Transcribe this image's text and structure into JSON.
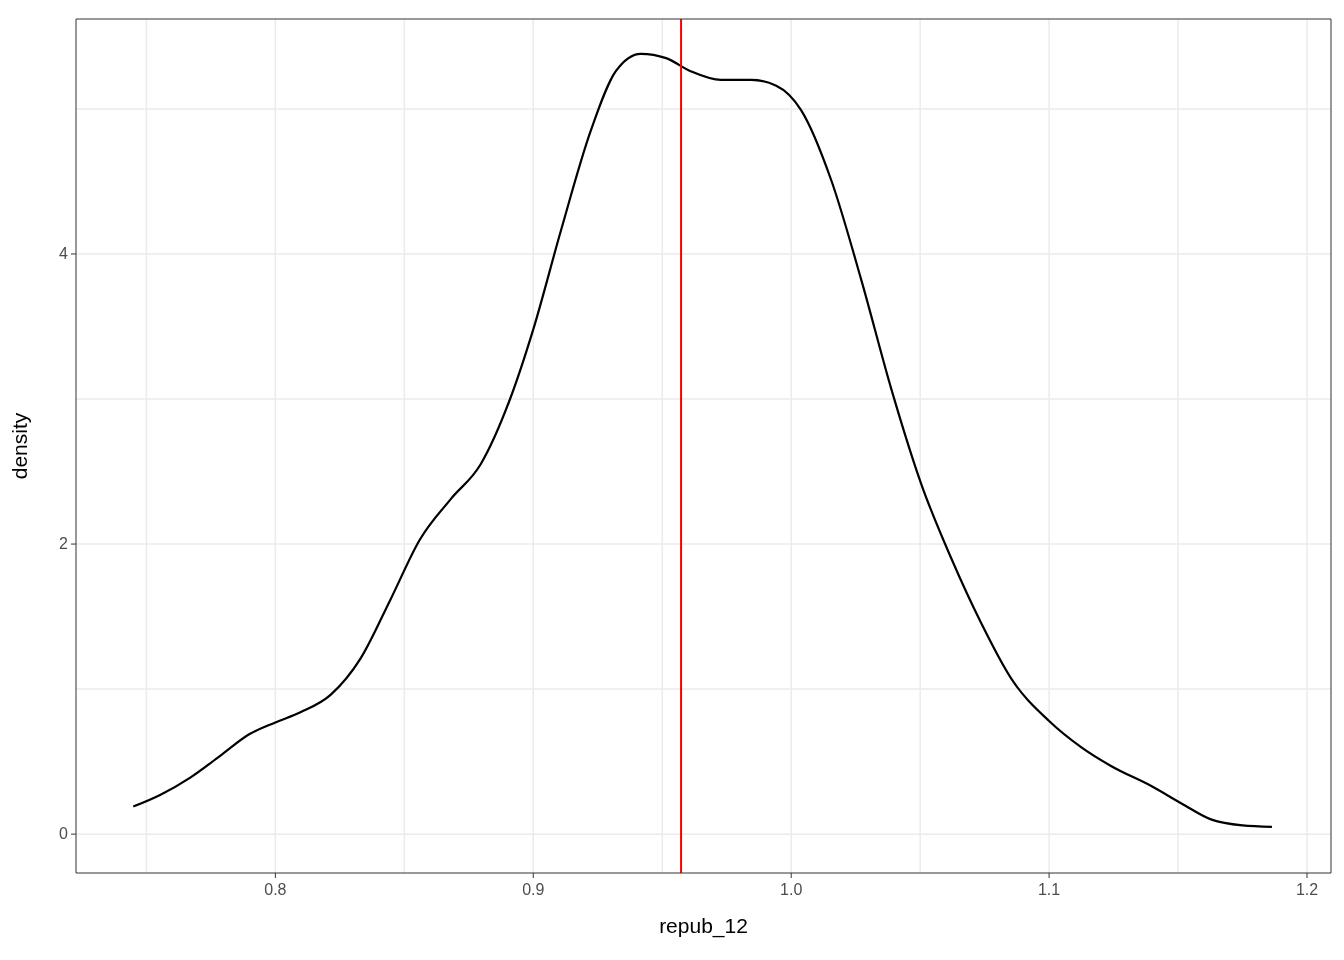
{
  "chart_data": {
    "type": "line",
    "xlabel": "repub_12",
    "ylabel": "density",
    "xlim": [
      0.7227,
      1.2093
    ],
    "ylim": [
      -0.268,
      5.62
    ],
    "xticks": [
      {
        "value": 0.75,
        "label": null
      },
      0.8,
      {
        "value": 0.85,
        "label": null
      },
      0.9,
      {
        "value": 0.95,
        "label": null
      },
      "1.0",
      {
        "value": 1.05,
        "label": null
      },
      1.1,
      {
        "value": 1.15,
        "label": null
      },
      1.2
    ],
    "yticks": [
      0,
      {
        "value": 1,
        "label": null
      },
      2,
      {
        "value": 3,
        "label": null
      },
      4,
      {
        "value": 5,
        "label": null
      }
    ],
    "grid": true,
    "marker": "none",
    "line_style": "solid",
    "ref_lines": [
      {
        "axis": "x",
        "value": 0.9573,
        "label": null,
        "color": "#ff0000"
      }
    ],
    "series": [
      {
        "color": "#000000",
        "x": [
          0.7449,
          0.7553,
          0.767,
          0.7786,
          0.79,
          0.8,
          0.8097,
          0.8214,
          0.833,
          0.8447,
          0.856,
          0.868,
          0.8796,
          0.891,
          0.9,
          0.9107,
          0.9223,
          0.932,
          0.9417,
          0.9515,
          0.961,
          0.9728,
          0.9845,
          0.9942,
          1.0039,
          1.0155,
          1.0272,
          1.0388,
          1.0505,
          1.0621,
          1.0738,
          1.0854,
          1.1,
          1.1124,
          1.124,
          1.1398,
          1.1515,
          1.163,
          1.175,
          1.1864
        ],
        "values": [
          0.19,
          0.27,
          0.39,
          0.54,
          0.69,
          0.77,
          0.84,
          0.96,
          1.21,
          1.62,
          2.03,
          2.31,
          2.55,
          3.0,
          3.48,
          4.16,
          4.85,
          5.26,
          5.38,
          5.35,
          5.26,
          5.2,
          5.2,
          5.16,
          4.99,
          4.51,
          3.82,
          3.07,
          2.41,
          1.9,
          1.45,
          1.07,
          0.78,
          0.6,
          0.47,
          0.33,
          0.21,
          0.1,
          0.06,
          0.05
        ]
      }
    ]
  }
}
